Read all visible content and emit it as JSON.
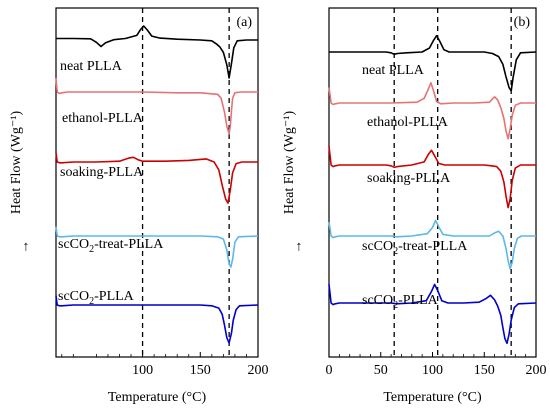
{
  "figure": {
    "ylabel": "Heat Flow (Wg⁻¹)",
    "ylabel_arrow": "↑",
    "panels": [
      {
        "tag": "(a)",
        "xlabel": "Temperature (°C)",
        "xlim": [
          25,
          200
        ],
        "xticks": [
          "100",
          "150",
          "200"
        ],
        "vlines": [
          100,
          175
        ]
      },
      {
        "tag": "(b)",
        "xlabel": "Temperature (°C)",
        "xlim": [
          0,
          200
        ],
        "xticks": [
          "0",
          "50",
          "100",
          "150",
          "200"
        ],
        "vlines": [
          63,
          105,
          176
        ]
      }
    ]
  },
  "chart_data": [
    {
      "type": "line",
      "title": "(a)",
      "xlabel": "Temperature (°C)",
      "ylabel": "Heat Flow (Wg⁻¹)",
      "xlim": [
        25,
        200
      ],
      "grid": false,
      "legend": "inline labels",
      "series": [
        {
          "name": "neat PLLA",
          "color": "#000000",
          "offset": 0.0,
          "x": [
            25,
            40,
            55,
            60,
            64,
            68,
            75,
            85,
            95,
            98,
            101,
            104,
            108,
            115,
            130,
            150,
            160,
            164,
            167,
            170,
            173,
            175,
            177,
            179,
            182,
            190,
            200
          ],
          "y": [
            0.1,
            0.1,
            0.08,
            -0.15,
            -0.42,
            -0.18,
            0.02,
            0.1,
            0.3,
            0.65,
            0.9,
            0.65,
            0.25,
            0.12,
            0.05,
            0.0,
            -0.05,
            -0.25,
            -0.45,
            -0.8,
            -1.6,
            -2.45,
            -1.5,
            -0.5,
            -0.05,
            0.0,
            0.0
          ]
        },
        {
          "name": "ethanol-PLLA",
          "color": "#e57373",
          "offset": -1.65,
          "x": [
            25,
            26,
            28,
            30,
            35,
            60,
            100,
            130,
            150,
            165,
            168,
            171,
            173,
            175,
            176,
            177,
            178,
            180,
            185,
            200
          ],
          "y": [
            0.9,
            0.0,
            -0.1,
            -0.05,
            0.0,
            0.0,
            0.0,
            -0.05,
            -0.05,
            -0.15,
            -0.4,
            -1.3,
            -2.2,
            -2.7,
            -2.2,
            -1.2,
            -0.4,
            -0.05,
            0.0,
            0.0
          ]
        },
        {
          "name": "soaking-PLLA",
          "color": "#cc0000",
          "offset": -3.85,
          "x": [
            25,
            26,
            28,
            30,
            40,
            60,
            80,
            88,
            92,
            96,
            100,
            120,
            140,
            155,
            162,
            166,
            169,
            172,
            174,
            176,
            178,
            181,
            186,
            200
          ],
          "y": [
            0.6,
            0.0,
            -0.05,
            -0.05,
            0.0,
            0.0,
            0.05,
            0.25,
            0.3,
            0.15,
            0.05,
            0.05,
            0.1,
            0.2,
            0.0,
            -0.5,
            -1.5,
            -2.4,
            -2.65,
            -1.8,
            -0.7,
            -0.1,
            0.0,
            0.0
          ]
        },
        {
          "name": "scCO2-treat-PLLA",
          "color": "#5bb8e8",
          "offset": -6.85,
          "x": [
            25,
            26,
            28,
            30,
            40,
            60,
            100,
            130,
            150,
            165,
            170,
            173,
            175,
            176.5,
            178,
            180,
            183,
            200
          ],
          "y": [
            0.6,
            0.0,
            -0.05,
            -0.05,
            0.0,
            0.0,
            0.0,
            0.0,
            0.0,
            -0.05,
            -0.2,
            -0.9,
            -1.8,
            -2.0,
            -1.5,
            -0.4,
            -0.05,
            0.0
          ]
        },
        {
          "name": "scCO2-PLLA",
          "color": "#0000cc",
          "offset": -8.55,
          "x": [
            25,
            26,
            28,
            30,
            40,
            60,
            100,
            130,
            150,
            160,
            166,
            169,
            171,
            173,
            175,
            177,
            178.5,
            181,
            184,
            200
          ],
          "y": [
            0.6,
            0.0,
            -0.05,
            -0.05,
            0.0,
            0.0,
            0.0,
            0.0,
            0.0,
            -0.05,
            -0.2,
            -0.6,
            -1.3,
            -2.1,
            -2.45,
            -1.8,
            -1.0,
            -0.3,
            -0.05,
            0.0
          ]
        }
      ]
    },
    {
      "type": "line",
      "title": "(b)",
      "xlabel": "Temperature (°C)",
      "ylabel": "Heat Flow (Wg⁻¹)",
      "xlim": [
        0,
        200
      ],
      "grid": false,
      "legend": "inline labels",
      "series": [
        {
          "name": "neat PLLA",
          "color": "#000000",
          "offset": 0.0,
          "x": [
            0,
            20,
            40,
            55,
            60,
            63,
            66,
            75,
            90,
            97,
            101,
            104,
            107,
            111,
            116,
            130,
            150,
            158,
            164,
            168,
            171,
            174,
            176,
            178,
            181,
            185,
            200
          ],
          "y": [
            0.0,
            0.0,
            0.0,
            0.0,
            -0.05,
            -0.15,
            -0.1,
            -0.05,
            0.0,
            0.25,
            0.75,
            1.05,
            0.7,
            0.15,
            0.0,
            0.0,
            0.0,
            -0.1,
            -0.3,
            -0.8,
            -1.6,
            -2.3,
            -2.5,
            -1.6,
            -0.5,
            -0.05,
            0.0
          ]
        },
        {
          "name": "ethanol-PLLA",
          "color": "#e57373",
          "offset": -1.65,
          "x": [
            0,
            2,
            4,
            6,
            10,
            30,
            60,
            85,
            92,
            96,
            98.5,
            101,
            104,
            108,
            120,
            140,
            155,
            160,
            163,
            166,
            169,
            171,
            173,
            175,
            177,
            180,
            185,
            200
          ],
          "y": [
            1.0,
            0.0,
            -0.1,
            -0.05,
            0.0,
            0.0,
            0.0,
            0.05,
            0.3,
            0.9,
            1.3,
            0.8,
            0.1,
            -0.05,
            0.0,
            0.0,
            0.05,
            0.4,
            0.2,
            -0.3,
            -1.0,
            -1.8,
            -2.3,
            -1.7,
            -0.8,
            -0.15,
            0.0,
            0.0
          ]
        },
        {
          "name": "soaking-PLLA",
          "color": "#cc0000",
          "offset": -3.95,
          "x": [
            0,
            2,
            4,
            6,
            10,
            30,
            55,
            60,
            63,
            66,
            80,
            92,
            96,
            99,
            102,
            106,
            112,
            130,
            150,
            157,
            162,
            166,
            169,
            171,
            173,
            175,
            177,
            180,
            185,
            200
          ],
          "y": [
            1.2,
            0.0,
            -0.1,
            -0.05,
            0.0,
            0.0,
            0.0,
            -0.05,
            -0.15,
            -0.1,
            0.0,
            0.2,
            0.7,
            0.95,
            0.6,
            0.1,
            0.0,
            0.0,
            0.0,
            -0.05,
            -0.1,
            -0.4,
            -1.1,
            -2.0,
            -2.75,
            -2.2,
            -1.0,
            -0.2,
            0.0,
            0.0
          ]
        },
        {
          "name": "scCO2-treat-PLLA",
          "color": "#5bb8e8",
          "offset": -6.75,
          "x": [
            0,
            2,
            4,
            6,
            10,
            40,
            60,
            65,
            80,
            95,
            100,
            103,
            106,
            110,
            120,
            140,
            155,
            160,
            164,
            168,
            171,
            173,
            175,
            177,
            179,
            182,
            186,
            200
          ],
          "y": [
            0.9,
            0.0,
            -0.1,
            -0.05,
            0.0,
            0.0,
            0.0,
            -0.05,
            0.0,
            0.15,
            0.55,
            1.0,
            0.6,
            0.1,
            0.0,
            0.0,
            0.0,
            0.2,
            0.3,
            0.0,
            -0.8,
            -1.6,
            -2.1,
            -1.7,
            -0.8,
            -0.15,
            0.0,
            0.0
          ]
        },
        {
          "name": "scCO2-PLLA",
          "color": "#0000cc",
          "offset": -8.55,
          "x": [
            0,
            2,
            4,
            6,
            10,
            40,
            60,
            65,
            80,
            94,
            99,
            102,
            105,
            109,
            115,
            130,
            145,
            152,
            156,
            160,
            163,
            166,
            168,
            170,
            172,
            174,
            176,
            179,
            183,
            200
          ],
          "y": [
            1.2,
            0.0,
            -0.1,
            -0.05,
            0.0,
            0.0,
            0.0,
            -0.05,
            0.0,
            0.15,
            0.75,
            1.2,
            0.8,
            0.15,
            0.0,
            0.0,
            0.05,
            0.3,
            0.5,
            0.2,
            -0.2,
            -0.8,
            -1.6,
            -2.3,
            -2.6,
            -2.0,
            -1.1,
            -0.3,
            -0.05,
            0.0
          ]
        }
      ]
    }
  ]
}
